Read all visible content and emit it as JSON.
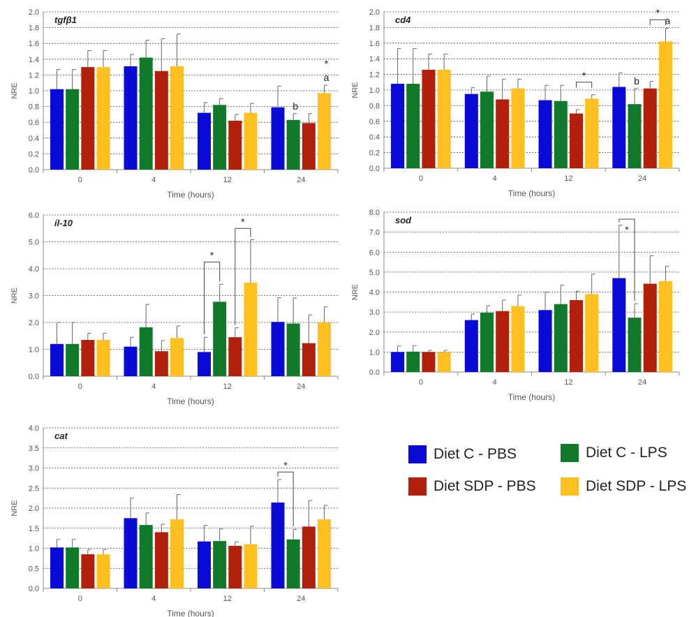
{
  "series_colors": [
    "#0a0ad6",
    "#117a2a",
    "#b0200a",
    "#ffc020"
  ],
  "legend": {
    "items": [
      {
        "label": "Diet C - PBS",
        "color": "#0a0ad6"
      },
      {
        "label": "Diet C - LPS",
        "color": "#117a2a"
      },
      {
        "label": "Diet SDP - PBS",
        "color": "#b0200a"
      },
      {
        "label": "Diet SDP - LPS",
        "color": "#ffc020"
      }
    ]
  },
  "chart_data": [
    {
      "type": "bar",
      "panel": "tgfb1",
      "title": "tgfβ1",
      "title_italic_prefix": "tgf",
      "title_suffix": "β1",
      "xlabel": "Time (hours)",
      "ylabel": "NRE",
      "categories": [
        "0",
        "4",
        "12",
        "24"
      ],
      "ylim": [
        0,
        2.0
      ],
      "yticks": [
        "0.0",
        "0.2",
        "0.4",
        "0.6",
        "0.8",
        "1.0",
        "1.2",
        "1.4",
        "1.6",
        "1.8",
        "2.0"
      ],
      "grid": true,
      "series": [
        {
          "name": "Diet C - PBS",
          "values": [
            1.02,
            1.31,
            0.72,
            0.79
          ],
          "errors": [
            0.25,
            0.15,
            0.13,
            0.27
          ]
        },
        {
          "name": "Diet C - LPS",
          "values": [
            1.02,
            1.42,
            0.82,
            0.63
          ],
          "errors": [
            0.25,
            0.22,
            0.08,
            0.08
          ]
        },
        {
          "name": "Diet SDP - PBS",
          "values": [
            1.3,
            1.25,
            0.62,
            0.59
          ],
          "errors": [
            0.21,
            0.41,
            0.08,
            0.12
          ]
        },
        {
          "name": "Diet SDP - LPS",
          "values": [
            1.3,
            1.31,
            0.72,
            0.97
          ],
          "errors": [
            0.21,
            0.41,
            0.12,
            0.1
          ]
        }
      ],
      "annotations": [
        {
          "text": "b",
          "category": 3,
          "series": 1
        },
        {
          "text": "a",
          "category": 3,
          "series": 3
        },
        {
          "text": "*",
          "category": 3,
          "series": 3,
          "above": true
        }
      ],
      "brackets": []
    },
    {
      "type": "bar",
      "panel": "cd4",
      "title": "cd4",
      "xlabel": "Time (hours)",
      "ylabel": "NRE",
      "categories": [
        "0",
        "4",
        "12",
        "24"
      ],
      "ylim": [
        0,
        2.0
      ],
      "yticks": [
        "0.0",
        "0.2",
        "0.4",
        "0.6",
        "0.8",
        "1.0",
        "1.2",
        "1.4",
        "1.6",
        "1.8",
        "2.0"
      ],
      "grid": true,
      "series": [
        {
          "name": "Diet C - PBS",
          "values": [
            1.08,
            0.95,
            0.87,
            1.04
          ],
          "errors": [
            0.45,
            0.08,
            0.19,
            0.18
          ]
        },
        {
          "name": "Diet C - LPS",
          "values": [
            1.08,
            0.98,
            0.86,
            0.82
          ],
          "errors": [
            0.45,
            0.2,
            0.2,
            0.2
          ]
        },
        {
          "name": "Diet SDP - PBS",
          "values": [
            1.26,
            0.88,
            0.7,
            1.02
          ],
          "errors": [
            0.2,
            0.26,
            0.05,
            0.09
          ]
        },
        {
          "name": "Diet SDP - LPS",
          "values": [
            1.26,
            1.02,
            0.89,
            1.62
          ],
          "errors": [
            0.2,
            0.12,
            0.05,
            0.17
          ]
        }
      ],
      "annotations": [
        {
          "text": "b",
          "category": 3,
          "series": 1
        },
        {
          "text": "a",
          "category": 3,
          "series": 3
        }
      ],
      "brackets": [
        {
          "from": [
            2,
            2
          ],
          "to": [
            2,
            3
          ],
          "y": 1.1,
          "label": "*"
        },
        {
          "from": [
            3,
            2
          ],
          "to": [
            3,
            3
          ],
          "y": 1.9,
          "label": "*"
        }
      ]
    },
    {
      "type": "bar",
      "panel": "il10",
      "title": "il-10",
      "xlabel": "Time (hours)",
      "ylabel": "NRE",
      "categories": [
        "0",
        "4",
        "12",
        "24"
      ],
      "ylim": [
        0,
        6.0
      ],
      "yticks": [
        "0.0",
        "1.0",
        "2.0",
        "3.0",
        "4.0",
        "5.0",
        "6.0"
      ],
      "grid": true,
      "series": [
        {
          "name": "Diet C - PBS",
          "values": [
            1.2,
            1.1,
            0.9,
            2.02
          ],
          "errors": [
            0.8,
            0.35,
            0.55,
            0.9
          ]
        },
        {
          "name": "Diet C - LPS",
          "values": [
            1.2,
            1.82,
            2.77,
            1.96
          ],
          "errors": [
            0.8,
            0.85,
            0.65,
            0.95
          ]
        },
        {
          "name": "Diet SDP - PBS",
          "values": [
            1.35,
            0.93,
            1.45,
            1.23
          ],
          "errors": [
            0.25,
            0.4,
            0.35,
            1.05
          ]
        },
        {
          "name": "Diet SDP - LPS",
          "values": [
            1.35,
            1.42,
            3.48,
            2.0
          ],
          "errors": [
            0.25,
            0.45,
            1.6,
            0.58
          ]
        }
      ],
      "annotations": [],
      "brackets": [
        {
          "from": [
            2,
            0
          ],
          "to": [
            2,
            1
          ],
          "y": 4.25,
          "label": "*",
          "legs_to_bar": true
        },
        {
          "from": [
            2,
            2
          ],
          "to": [
            2,
            3
          ],
          "y": 5.5,
          "label": "*",
          "legs_to_bar": true
        }
      ]
    },
    {
      "type": "bar",
      "panel": "sod",
      "title": "sod",
      "xlabel": "Time (hours)",
      "ylabel": "NRE",
      "categories": [
        "0",
        "4",
        "12",
        "24"
      ],
      "ylim": [
        0,
        8.0
      ],
      "yticks": [
        "0.0",
        "1.0",
        "2.0",
        "3.0",
        "4.0",
        "5.0",
        "6.0",
        "7.0",
        "8.0"
      ],
      "grid": true,
      "series": [
        {
          "name": "Diet C - PBS",
          "values": [
            1.0,
            2.6,
            3.1,
            4.7
          ],
          "errors": [
            0.3,
            0.3,
            0.9,
            2.65
          ]
        },
        {
          "name": "Diet C - LPS",
          "values": [
            1.02,
            2.97,
            3.4,
            2.72
          ],
          "errors": [
            0.3,
            0.35,
            0.95,
            0.7
          ]
        },
        {
          "name": "Diet SDP - PBS",
          "values": [
            1.0,
            3.05,
            3.6,
            4.42
          ],
          "errors": [
            0.08,
            0.55,
            0.45,
            1.4
          ]
        },
        {
          "name": "Diet SDP - LPS",
          "values": [
            1.0,
            3.3,
            3.9,
            4.55
          ],
          "errors": [
            0.08,
            0.55,
            1.0,
            0.75
          ]
        }
      ],
      "annotations": [],
      "brackets": [
        {
          "from": [
            3,
            0
          ],
          "to": [
            3,
            1
          ],
          "y": 7.65,
          "label": "*",
          "legs_to_bar": true,
          "label_below": true
        }
      ]
    },
    {
      "type": "bar",
      "panel": "cat",
      "title": "cat",
      "xlabel": "Time (hours)",
      "ylabel": "NRE",
      "categories": [
        "0",
        "4",
        "12",
        "24"
      ],
      "ylim": [
        0,
        4.0
      ],
      "yticks": [
        "0.0",
        "0.5",
        "1.0",
        "1.5",
        "2.0",
        "2.5",
        "3.0",
        "3.5",
        "4.0"
      ],
      "grid": true,
      "series": [
        {
          "name": "Diet C - PBS",
          "values": [
            1.02,
            1.75,
            1.17,
            2.14
          ],
          "errors": [
            0.2,
            0.5,
            0.4,
            0.57
          ]
        },
        {
          "name": "Diet C - LPS",
          "values": [
            1.02,
            1.58,
            1.18,
            1.22
          ],
          "errors": [
            0.2,
            0.3,
            0.3,
            0.25
          ]
        },
        {
          "name": "Diet SDP - PBS",
          "values": [
            0.85,
            1.4,
            1.06,
            1.54
          ],
          "errors": [
            0.12,
            0.2,
            0.1,
            0.65
          ]
        },
        {
          "name": "Diet SDP - LPS",
          "values": [
            0.85,
            1.72,
            1.1,
            1.72
          ],
          "errors": [
            0.12,
            0.62,
            0.45,
            0.35
          ]
        }
      ],
      "annotations": [],
      "brackets": [
        {
          "from": [
            3,
            0
          ],
          "to": [
            3,
            1
          ],
          "y": 2.9,
          "label": "*",
          "legs_to_bar": true
        }
      ]
    }
  ]
}
